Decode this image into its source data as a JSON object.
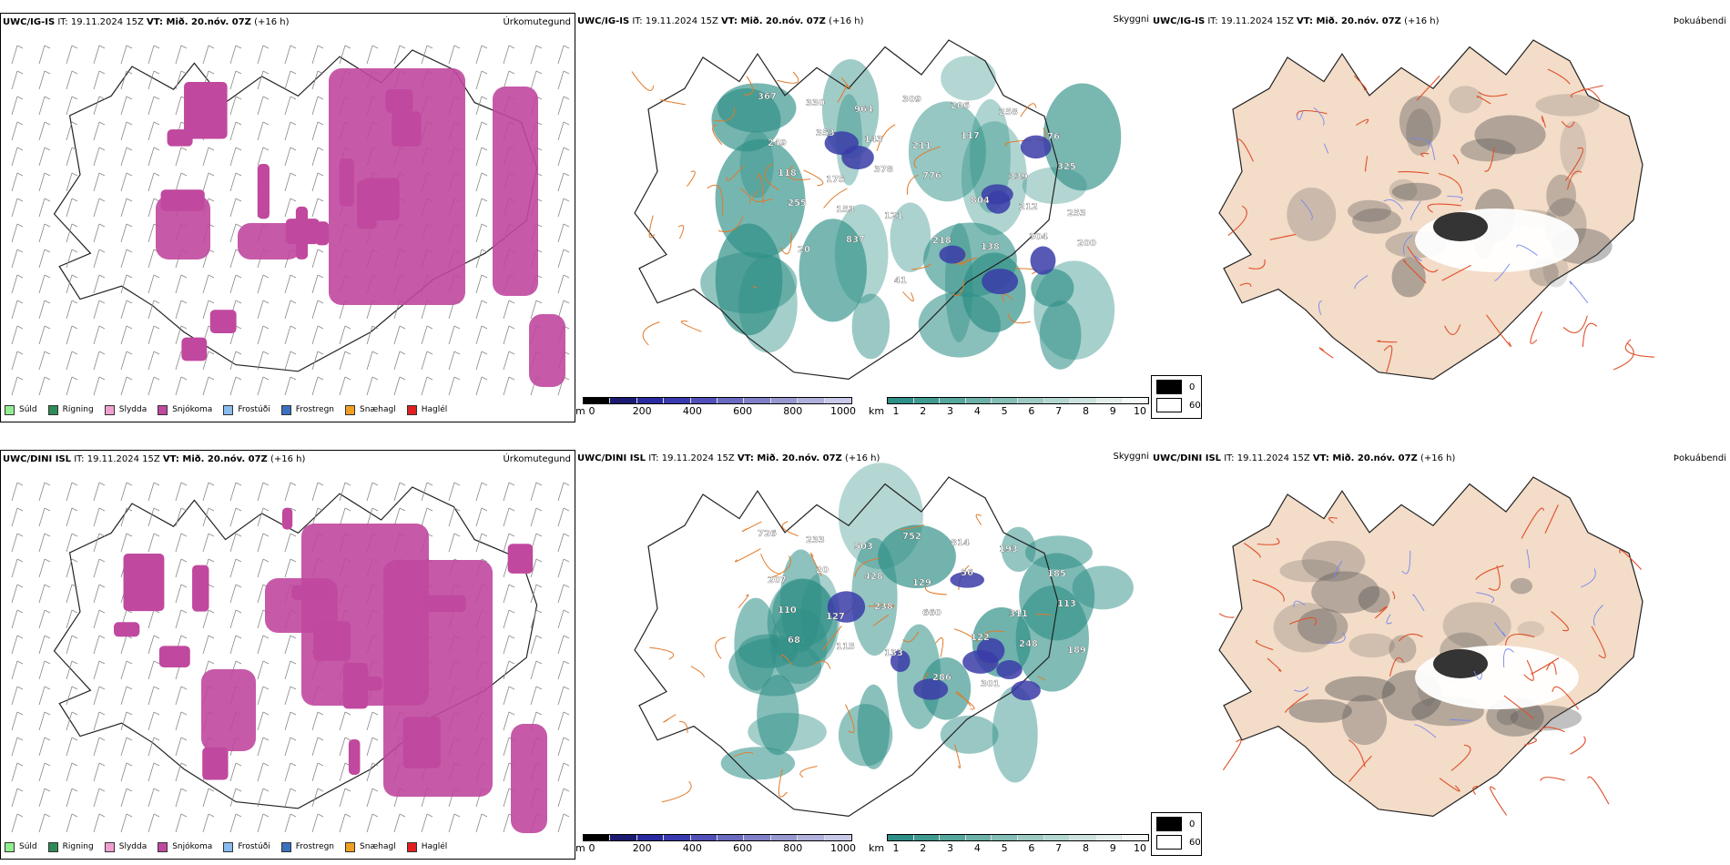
{
  "colors": {
    "precip": "#c0489e",
    "cloud": "#2e8f86",
    "lowcloud": "#3a3ca8",
    "road": "#e07a2a",
    "fogroad": "#e0502a",
    "land": "#f3dcc8",
    "river": "#7788ee"
  },
  "rows": [
    {
      "id": "ig",
      "precip": {
        "model": "UWC/IG-IS",
        "it_label": " IT: 19.11.2024 15Z ",
        "vt_label": "VT: Mið. 20.nóv. 07Z",
        "lead": " (+16 h)",
        "title": "Úrkomutegund"
      },
      "cloud": {
        "model": "UWC/IG-IS",
        "it_label": " IT: 19.11.2024 15Z ",
        "vt_label": "VT: Mið. 20.nóv. 07Z",
        "lead": " (+16 h)",
        "title": "Skyggni"
      },
      "fog": {
        "model": "UWC/IG-IS",
        "it_label": " IT: 19.11.2024 15Z ",
        "vt_label": "VT: Mið. 20.nóv. 07Z",
        "lead": " (+16 h)",
        "title": "Þokuábendi"
      },
      "labels": [
        "367",
        "330",
        "964",
        "309",
        "206",
        "258",
        "76",
        "249",
        "353",
        "143",
        "211",
        "117",
        "339",
        "325",
        "118",
        "175",
        "378",
        "776",
        "804",
        "212",
        "253",
        "255",
        "153",
        "121",
        "218",
        "138",
        "304",
        "200",
        "20",
        "837",
        "41"
      ]
    },
    {
      "id": "dini",
      "precip": {
        "model": "UWC/DINI ISL",
        "it_label": " IT: 19.11.2024 15Z ",
        "vt_label": "VT: Mið. 20.nóv. 07Z",
        "lead": " (+16 h)",
        "title": "Úrkomutegund"
      },
      "cloud": {
        "model": "UWC/DINI ISL",
        "it_label": " IT: 19.11.2024 15Z ",
        "vt_label": "VT: Mið. 20.nóv. 07Z",
        "lead": " (+16 h)",
        "title": "Skyggni"
      },
      "fog": {
        "model": "UWC/DINI ISL",
        "it_label": " IT: 19.11.2024 15Z ",
        "vt_label": "VT: Mið. 20.nóv. 07Z",
        "lead": " (+16 h)",
        "title": "Þokuábendi"
      },
      "labels": [
        "726",
        "233",
        "503",
        "752",
        "814",
        "193",
        "185",
        "207",
        "20",
        "428",
        "129",
        "56",
        "311",
        "113",
        "110",
        "127",
        "238",
        "660",
        "122",
        "248",
        "189",
        "68",
        "115",
        "133",
        "286",
        "301"
      ]
    }
  ],
  "precip_legend": [
    {
      "label": "Súld",
      "color": "#90ee90"
    },
    {
      "label": "Rigning",
      "color": "#2e8b57"
    },
    {
      "label": "Slydda",
      "color": "#f0a0d0"
    },
    {
      "label": "Snjókoma",
      "color": "#c0489e"
    },
    {
      "label": "Frostúði",
      "color": "#88bbee"
    },
    {
      "label": "Frostregn",
      "color": "#3a70c0"
    },
    {
      "label": "Snæhagl",
      "color": "#f0a020"
    },
    {
      "label": "Haglél",
      "color": "#e02020"
    }
  ],
  "ceiling_bar": {
    "unit": "m",
    "ticks": [
      "0",
      "200",
      "400",
      "600",
      "800",
      "1000"
    ]
  },
  "vis_bar": {
    "unit": "km",
    "ticks": [
      "1",
      "2",
      "3",
      "4",
      "5",
      "6",
      "7",
      "8",
      "9",
      "10"
    ]
  },
  "fog_legend": [
    {
      "label": "0",
      "color": "#000000"
    },
    {
      "label": "60",
      "color": "#ffffff"
    }
  ]
}
